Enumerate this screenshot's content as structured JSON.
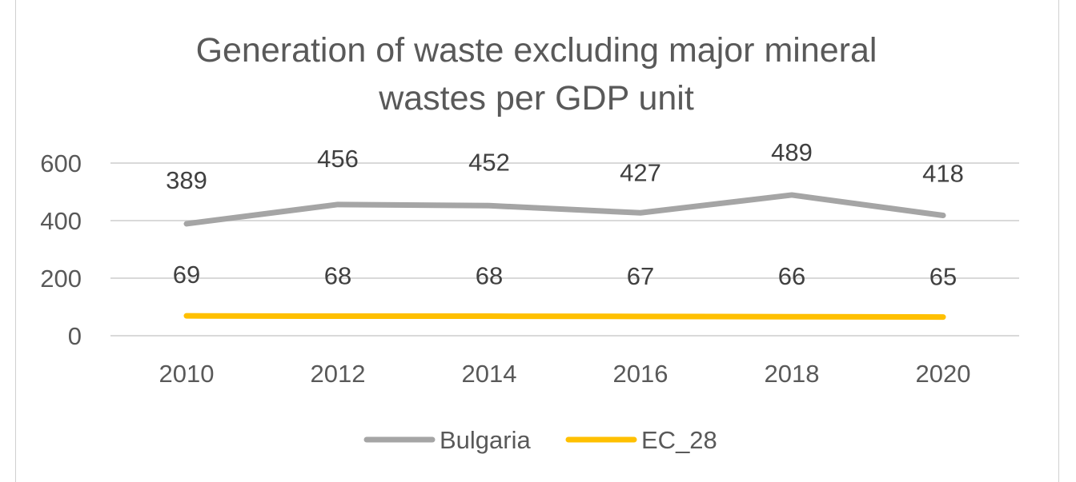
{
  "chart_data": {
    "type": "line",
    "title_lines": [
      "Generation of waste excluding major mineral",
      "wastes per GDP unit"
    ],
    "categories": [
      "2010",
      "2012",
      "2014",
      "2016",
      "2018",
      "2020"
    ],
    "series": [
      {
        "name": "Bulgaria",
        "values": [
          389,
          456,
          452,
          427,
          489,
          418
        ],
        "labels": [
          "389",
          "456",
          "452",
          "427",
          "489",
          "418"
        ],
        "color": "#a5a5a5"
      },
      {
        "name": "EC_28",
        "values": [
          69,
          68,
          68,
          67,
          66,
          65
        ],
        "labels": [
          "69",
          "68",
          "68",
          "67",
          "66",
          "65"
        ],
        "color": "#ffc000"
      }
    ],
    "ylim": [
      0,
      600
    ],
    "yticks": [
      0,
      200,
      400,
      600
    ],
    "ytick_labels": [
      "0",
      "200",
      "400",
      "600"
    ],
    "xlabel": "",
    "ylabel": "",
    "grid": true,
    "legend_position": "bottom"
  }
}
